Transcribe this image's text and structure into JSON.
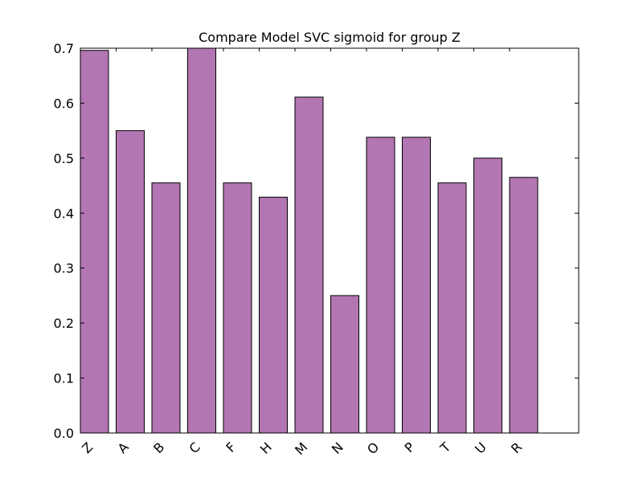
{
  "colors": {
    "bar_fill": "#b276b2",
    "bar_stroke": "#000000",
    "axis": "#000000",
    "background": "#ffffff"
  },
  "chart_data": {
    "type": "bar",
    "title": "Compare Model SVC sigmoid for group Z",
    "xlabel": "",
    "ylabel": "",
    "categories": [
      "Z",
      "A",
      "B",
      "C",
      "F",
      "H",
      "M",
      "N",
      "O",
      "P",
      "T",
      "U",
      "R"
    ],
    "values": [
      0.696,
      0.55,
      0.455,
      0.7,
      0.455,
      0.429,
      0.611,
      0.25,
      0.538,
      0.538,
      0.455,
      0.5,
      0.465
    ],
    "ylim": [
      0,
      0.7
    ],
    "yticks": [
      "0.0",
      "0.1",
      "0.2",
      "0.3",
      "0.4",
      "0.5",
      "0.6",
      "0.7"
    ],
    "grid": false,
    "legend": "none"
  }
}
